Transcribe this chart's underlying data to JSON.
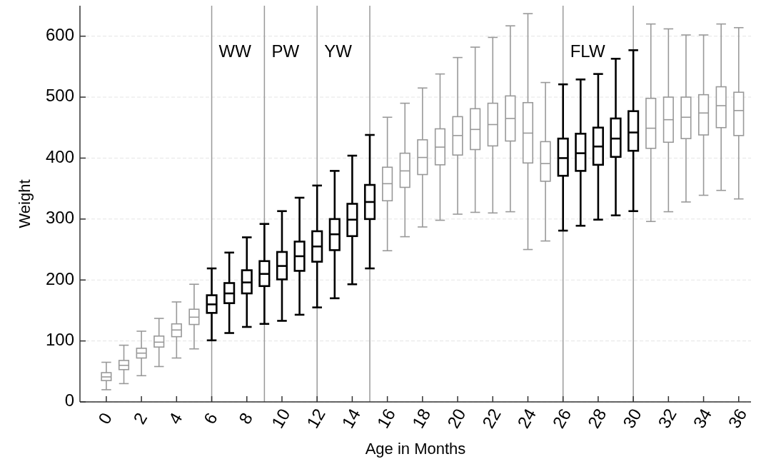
{
  "chart_data": {
    "type": "box",
    "xlabel": "Age in Months",
    "ylabel": "Weight",
    "x": [
      0,
      1,
      2,
      3,
      4,
      5,
      6,
      7,
      8,
      9,
      10,
      11,
      12,
      13,
      14,
      15,
      16,
      17,
      18,
      19,
      20,
      21,
      22,
      23,
      24,
      25,
      26,
      27,
      28,
      29,
      30,
      31,
      32,
      33,
      34,
      35,
      36
    ],
    "xlim": [
      -1.5,
      36.7
    ],
    "xticks": [
      0,
      2,
      4,
      6,
      8,
      10,
      12,
      14,
      16,
      18,
      20,
      22,
      24,
      26,
      28,
      30,
      32,
      34,
      36
    ],
    "ylim": [
      0,
      650
    ],
    "yticks": [
      0,
      100,
      200,
      300,
      400,
      500,
      600
    ],
    "grid": "y",
    "colors": [
      "#999999",
      "#999999",
      "#999999",
      "#999999",
      "#999999",
      "#999999",
      "#000000",
      "#000000",
      "#000000",
      "#000000",
      "#000000",
      "#000000",
      "#000000",
      "#000000",
      "#000000",
      "#000000",
      "#999999",
      "#999999",
      "#999999",
      "#999999",
      "#999999",
      "#999999",
      "#999999",
      "#999999",
      "#999999",
      "#999999",
      "#000000",
      "#000000",
      "#000000",
      "#000000",
      "#000000",
      "#999999",
      "#999999",
      "#999999",
      "#999999",
      "#999999",
      "#999999"
    ],
    "boxes": [
      {
        "low": 20,
        "q1": 35,
        "median": 41,
        "q3": 48,
        "high": 65
      },
      {
        "low": 30,
        "q1": 53,
        "median": 60,
        "q3": 68,
        "high": 93
      },
      {
        "low": 43,
        "q1": 72,
        "median": 80,
        "q3": 88,
        "high": 116
      },
      {
        "low": 58,
        "q1": 90,
        "median": 98,
        "q3": 108,
        "high": 137
      },
      {
        "low": 72,
        "q1": 107,
        "median": 118,
        "q3": 128,
        "high": 164
      },
      {
        "low": 87,
        "q1": 127,
        "median": 139,
        "q3": 152,
        "high": 193
      },
      {
        "low": 101,
        "q1": 146,
        "median": 160,
        "q3": 175,
        "high": 219
      },
      {
        "low": 113,
        "q1": 162,
        "median": 178,
        "q3": 195,
        "high": 245
      },
      {
        "low": 123,
        "q1": 178,
        "median": 196,
        "q3": 216,
        "high": 270
      },
      {
        "low": 128,
        "q1": 190,
        "median": 210,
        "q3": 231,
        "high": 292
      },
      {
        "low": 133,
        "q1": 201,
        "median": 223,
        "q3": 246,
        "high": 313
      },
      {
        "low": 143,
        "q1": 215,
        "median": 239,
        "q3": 263,
        "high": 335
      },
      {
        "low": 155,
        "q1": 230,
        "median": 255,
        "q3": 280,
        "high": 355
      },
      {
        "low": 170,
        "q1": 249,
        "median": 275,
        "q3": 300,
        "high": 379
      },
      {
        "low": 193,
        "q1": 272,
        "median": 299,
        "q3": 325,
        "high": 404
      },
      {
        "low": 219,
        "q1": 300,
        "median": 328,
        "q3": 356,
        "high": 438
      },
      {
        "low": 248,
        "q1": 330,
        "median": 358,
        "q3": 385,
        "high": 467
      },
      {
        "low": 271,
        "q1": 352,
        "median": 379,
        "q3": 408,
        "high": 490
      },
      {
        "low": 287,
        "q1": 373,
        "median": 401,
        "q3": 430,
        "high": 515
      },
      {
        "low": 298,
        "q1": 389,
        "median": 418,
        "q3": 448,
        "high": 538
      },
      {
        "low": 308,
        "q1": 405,
        "median": 437,
        "q3": 468,
        "high": 565
      },
      {
        "low": 311,
        "q1": 414,
        "median": 447,
        "q3": 481,
        "high": 582
      },
      {
        "low": 310,
        "q1": 420,
        "median": 455,
        "q3": 490,
        "high": 598
      },
      {
        "low": 312,
        "q1": 428,
        "median": 465,
        "q3": 502,
        "high": 617
      },
      {
        "low": 250,
        "q1": 392,
        "median": 441,
        "q3": 491,
        "high": 637
      },
      {
        "low": 264,
        "q1": 362,
        "median": 391,
        "q3": 427,
        "high": 524
      },
      {
        "low": 281,
        "q1": 371,
        "median": 400,
        "q3": 432,
        "high": 521
      },
      {
        "low": 289,
        "q1": 379,
        "median": 408,
        "q3": 440,
        "high": 529
      },
      {
        "low": 299,
        "q1": 389,
        "median": 419,
        "q3": 450,
        "high": 538
      },
      {
        "low": 306,
        "q1": 402,
        "median": 432,
        "q3": 465,
        "high": 563
      },
      {
        "low": 313,
        "q1": 412,
        "median": 442,
        "q3": 477,
        "high": 577
      },
      {
        "low": 296,
        "q1": 416,
        "median": 449,
        "q3": 498,
        "high": 620
      },
      {
        "low": 312,
        "q1": 426,
        "median": 463,
        "q3": 500,
        "high": 612
      },
      {
        "low": 328,
        "q1": 432,
        "median": 467,
        "q3": 500,
        "high": 602
      },
      {
        "low": 339,
        "q1": 438,
        "median": 474,
        "q3": 504,
        "high": 602
      },
      {
        "low": 347,
        "q1": 450,
        "median": 486,
        "q3": 517,
        "high": 620
      },
      {
        "low": 333,
        "q1": 437,
        "median": 478,
        "q3": 508,
        "high": 614
      }
    ],
    "ref_lines": [
      {
        "axis": "x",
        "value": 6,
        "label": "WW",
        "color": "#999999"
      },
      {
        "axis": "x",
        "value": 9,
        "label": "PW",
        "color": "#999999"
      },
      {
        "axis": "x",
        "value": 12,
        "label": "YW",
        "color": "#999999"
      },
      {
        "axis": "x",
        "value": 15,
        "color": "#999999"
      },
      {
        "axis": "x",
        "value": 26,
        "label": "FLW",
        "color": "#999999"
      },
      {
        "axis": "x",
        "value": 30,
        "color": "#999999"
      }
    ]
  }
}
